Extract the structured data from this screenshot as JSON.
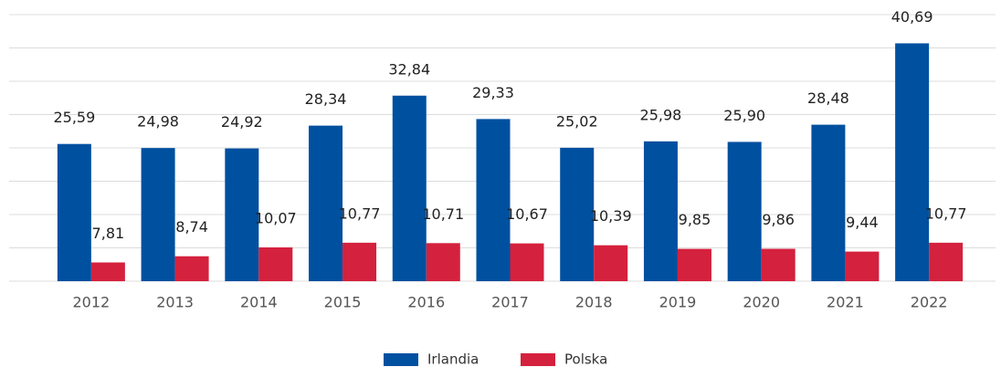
{
  "chart_data": {
    "type": "bar",
    "categories": [
      "2012",
      "2013",
      "2014",
      "2015",
      "2016",
      "2017",
      "2018",
      "2019",
      "2020",
      "2021",
      "2022"
    ],
    "series": [
      {
        "name": "Irlandia",
        "color": "#0050a0",
        "values": [
          25.59,
          24.98,
          24.92,
          28.34,
          32.84,
          29.33,
          25.02,
          25.98,
          25.9,
          28.48,
          40.69
        ],
        "value_labels": [
          "25,59",
          "24,98",
          "24,92",
          "28,34",
          "32,84",
          "29,33",
          "25,02",
          "25,98",
          "25,90",
          "28,48",
          "40,69"
        ]
      },
      {
        "name": "Polska",
        "color": "#d4213d",
        "values": [
          7.81,
          8.74,
          10.07,
          10.77,
          10.71,
          10.67,
          10.39,
          9.85,
          9.86,
          9.44,
          10.77
        ],
        "value_labels": [
          "7,81",
          "8,74",
          "10,07",
          "10,77",
          "10,71",
          "10,67",
          "10,39",
          "9,85",
          "9,86",
          "9,44",
          "10,77"
        ]
      }
    ],
    "ylim": [
      5,
      45
    ],
    "yticks": [
      5,
      10,
      15,
      20,
      25,
      30,
      35,
      40,
      45
    ],
    "grid": true,
    "legend": "bottom"
  }
}
